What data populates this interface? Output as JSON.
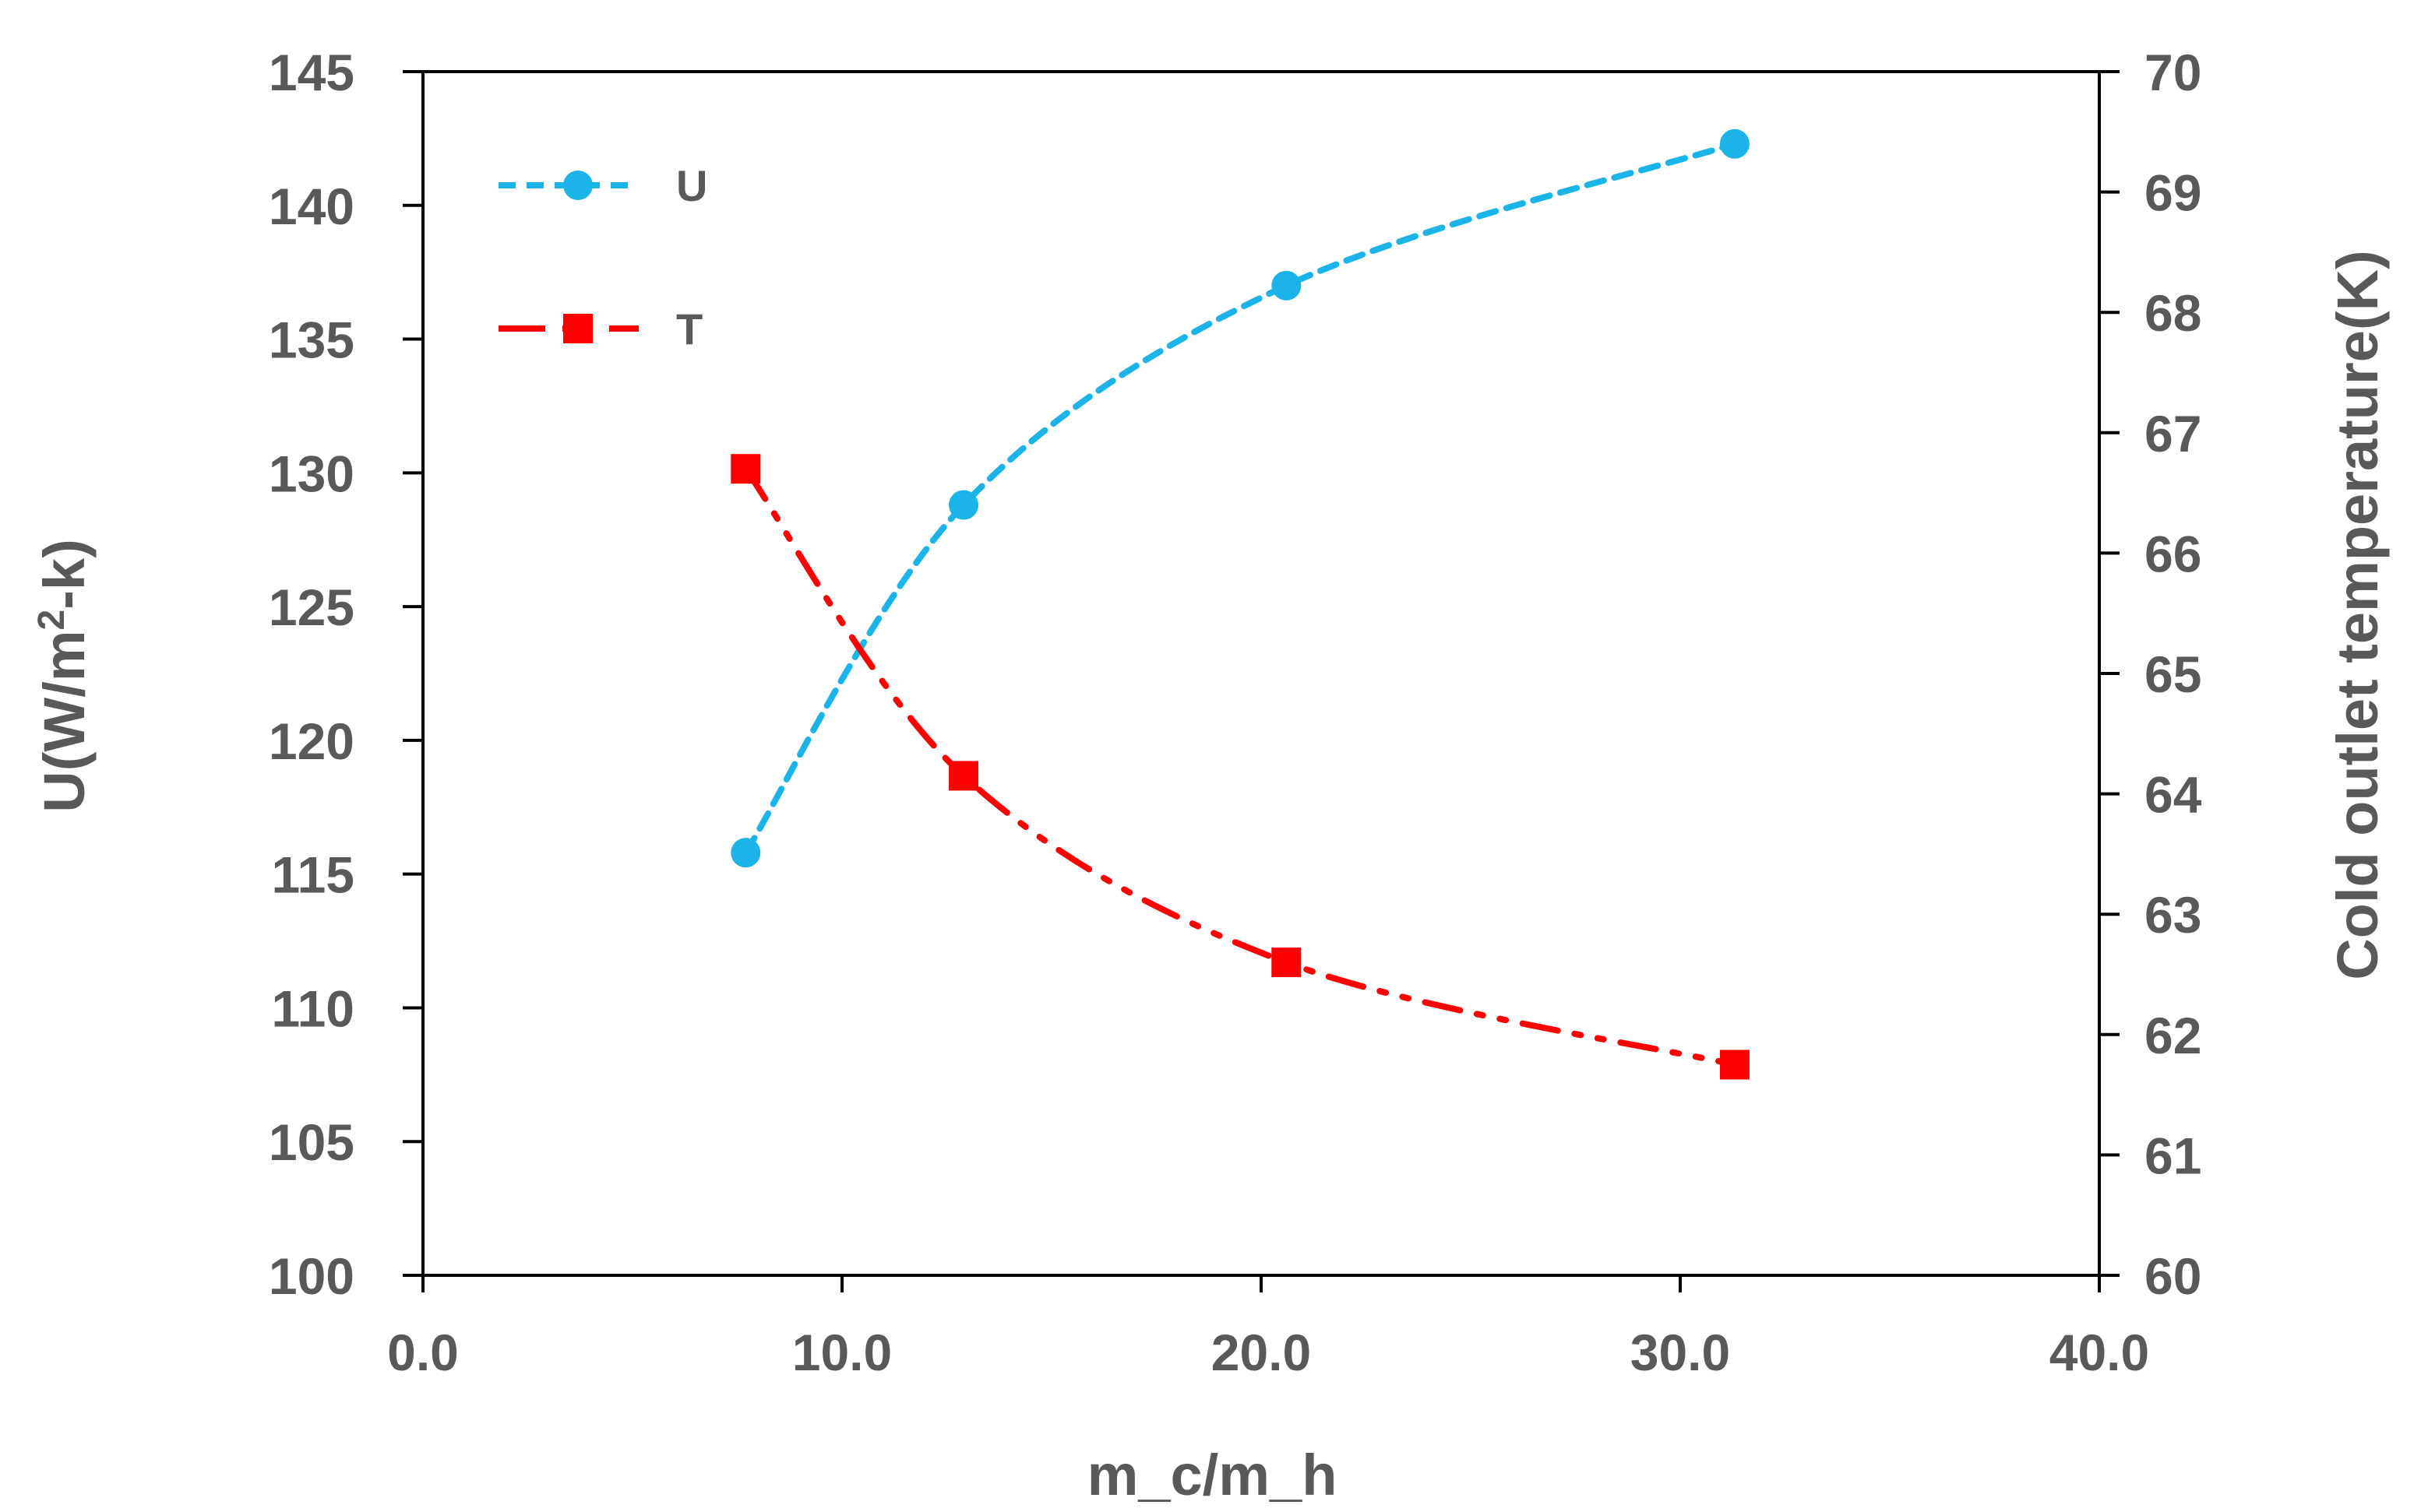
{
  "chart_data": {
    "type": "line",
    "title": "",
    "xlabel": "m_c/m_h",
    "ylabel_left": "U(W/m",
    "ylabel_left_sup": "2",
    "ylabel_left_tail": "-k)",
    "ylabel_right": "Cold outlet temperature(K)",
    "xlim": [
      0,
      40
    ],
    "ylim_left": [
      100,
      145
    ],
    "ylim_right": [
      60,
      70
    ],
    "x_ticks": [
      "0.0",
      "10.0",
      "20.0",
      "30.0",
      "40.0"
    ],
    "x_tick_values": [
      0,
      10,
      20,
      30,
      40
    ],
    "y_left_ticks": [
      "100",
      "105",
      "110",
      "115",
      "120",
      "125",
      "130",
      "135",
      "140",
      "145"
    ],
    "y_left_tick_values": [
      100,
      105,
      110,
      115,
      120,
      125,
      130,
      135,
      140,
      145
    ],
    "y_right_ticks": [
      "60",
      "61",
      "62",
      "63",
      "64",
      "65",
      "66",
      "67",
      "68",
      "69",
      "70"
    ],
    "y_right_tick_values": [
      60,
      61,
      62,
      63,
      64,
      65,
      66,
      67,
      68,
      69,
      70
    ],
    "grid": false,
    "legend_position": "top-left",
    "series": [
      {
        "name": "U",
        "axis": "left",
        "marker": "circle",
        "line_style": "dashed",
        "color": "#1BB4E8",
        "x": [
          7.7,
          12.9,
          20.6,
          31.3
        ],
        "values": [
          115.8,
          128.8,
          137.0,
          142.3
        ]
      },
      {
        "name": "T",
        "axis": "right",
        "marker": "square",
        "line_style": "dash-dot",
        "color": "#FF0000",
        "x": [
          7.7,
          12.9,
          20.6,
          31.3
        ],
        "values": [
          66.7,
          64.15,
          62.6,
          61.75
        ]
      }
    ]
  }
}
